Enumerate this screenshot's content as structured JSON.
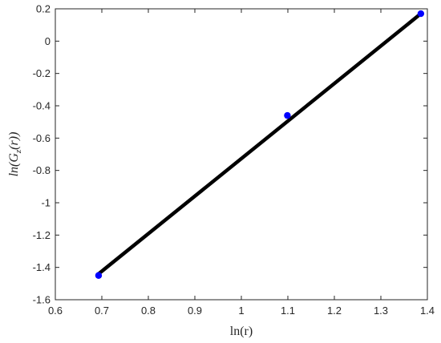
{
  "chart_data": {
    "type": "scatter",
    "title": "",
    "xlabel": "ln(r)",
    "ylabel": "ln(G_z(r))",
    "ylabel_parts": {
      "prefix": "ln(G",
      "subscript": "z",
      "suffix": "(r))"
    },
    "xlim": [
      0.6,
      1.4
    ],
    "ylim": [
      -1.6,
      0.2
    ],
    "xticks": [
      0.6,
      0.7,
      0.8,
      0.9,
      1.0,
      1.1,
      1.2,
      1.3,
      1.4
    ],
    "xtick_labels": [
      "0.6",
      "0.7",
      "0.8",
      "0.9",
      "1",
      "1.1",
      "1.2",
      "1.3",
      "1.4"
    ],
    "yticks": [
      0.2,
      0,
      -0.2,
      -0.4,
      -0.6,
      -0.8,
      -1.0,
      -1.2,
      -1.4,
      -1.6
    ],
    "ytick_labels": [
      "0.2",
      "0",
      "-0.2",
      "-0.4",
      "-0.6",
      "-0.8",
      "-1",
      "-1.2",
      "-1.4",
      "-1.6"
    ],
    "grid": false,
    "series": [
      {
        "kind": "points",
        "color": "#0000ff",
        "x": [
          0.693,
          1.099,
          1.386
        ],
        "y": [
          -1.45,
          -0.46,
          0.17
        ]
      },
      {
        "kind": "fit-line",
        "color": "#000000",
        "x": [
          0.693,
          1.386
        ],
        "y": [
          -1.44,
          0.17
        ]
      }
    ]
  }
}
